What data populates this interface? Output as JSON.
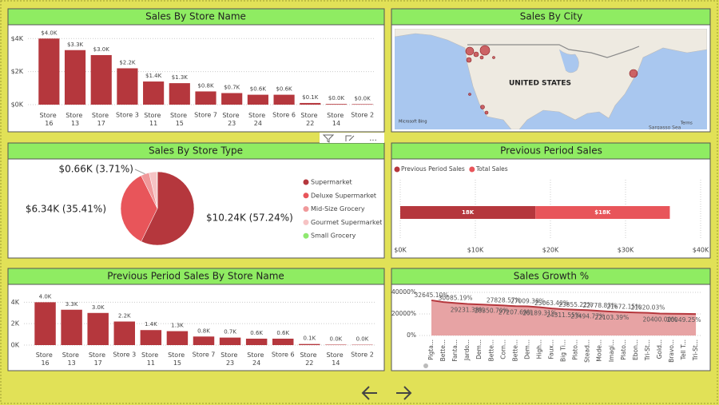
{
  "chart_data": [
    {
      "type": "bar",
      "title": "Sales By Store Name",
      "categories": [
        "Store 16",
        "Store 13",
        "Store 17",
        "Store 3",
        "Store 11",
        "Store 15",
        "Store 7",
        "Store 23",
        "Store 24",
        "Store 6",
        "Store 22",
        "Store 14",
        "Store 2"
      ],
      "values": [
        4.0,
        3.3,
        3.0,
        2.2,
        1.4,
        1.3,
        0.8,
        0.7,
        0.6,
        0.6,
        0.1,
        0.04,
        0.03
      ],
      "value_labels": [
        "$4.0K",
        "$3.3K",
        "$3.0K",
        "$2.2K",
        "$1.4K",
        "$1.3K",
        "$0.8K",
        "$0.7K",
        "$0.6K",
        "$0.6K",
        "$0.1K",
        "$0.0K",
        "$0.0K"
      ],
      "color": "#b5373d",
      "ylim": [
        0,
        4.4
      ],
      "yticks": [
        {
          "value": 0,
          "label": "$0K"
        },
        {
          "value": 2,
          "label": "$2K"
        },
        {
          "value": 4,
          "label": "$4K"
        }
      ],
      "grid": true
    },
    {
      "type": "pie",
      "title": "Sales By Store Type",
      "categories": [
        "Supermarket",
        "Deluxe Supermarket",
        "Mid-Size Grocery",
        "Gourmet Supermarket",
        "Small Grocery"
      ],
      "values": [
        10.24,
        6.34,
        0.66,
        0.62,
        0.03
      ],
      "value_labels": [
        "$10.24K (57.24%)",
        "$6.34K (35.41%)",
        "$0.66K (3.71%)",
        null,
        null
      ],
      "colors": [
        "#b5373d",
        "#e8555a",
        "#f0999b",
        "#f6c3c4",
        "#8fe870"
      ]
    },
    {
      "type": "hbar",
      "title": "Previous Period Sales",
      "series": [
        {
          "name": "Previous Period Sales",
          "color": "#b5373d",
          "values": [
            18.0
          ],
          "value_labels": [
            "18K"
          ]
        },
        {
          "name": "Total Sales",
          "color": "#e8555a",
          "values": [
            17.9
          ],
          "value_labels": [
            "$18K"
          ]
        }
      ],
      "xlim": [
        0,
        40
      ],
      "xticks": [
        {
          "value": 0,
          "label": "$0K"
        },
        {
          "value": 10,
          "label": "$10K"
        },
        {
          "value": 20,
          "label": "$20K"
        },
        {
          "value": 30,
          "label": "$30K"
        },
        {
          "value": 40,
          "label": "$40K"
        }
      ],
      "grid": true
    },
    {
      "type": "bar",
      "title": "Previous Period Sales By Store Name",
      "categories": [
        "Store 16",
        "Store 13",
        "Store 17",
        "Store 3",
        "Store 11",
        "Store 15",
        "Store 7",
        "Store 23",
        "Store 24",
        "Store 6",
        "Store 22",
        "Store 14",
        "Store 2"
      ],
      "values": [
        4.0,
        3.3,
        3.0,
        2.2,
        1.4,
        1.3,
        0.8,
        0.7,
        0.6,
        0.6,
        0.1,
        0.04,
        0.03
      ],
      "value_labels": [
        "4.0K",
        "3.3K",
        "3.0K",
        "2.2K",
        "1.4K",
        "1.3K",
        "0.8K",
        "0.7K",
        "0.6K",
        "0.6K",
        "0.1K",
        "0.0K",
        "0.0K"
      ],
      "color": "#b5373d",
      "ylim": [
        0,
        4.4
      ],
      "yticks": [
        {
          "value": 0,
          "label": "0K"
        },
        {
          "value": 2,
          "label": "2K"
        },
        {
          "value": 4,
          "label": "4K"
        }
      ],
      "grid": true
    },
    {
      "type": "area",
      "title": "Sales Growth %",
      "categories": [
        "Pigta...",
        "Bette...",
        "Fanta...",
        "Jardo...",
        "Dem...",
        "Bette...",
        "Corn...",
        "Bette...",
        "Dem...",
        "High...",
        "Faux...",
        "Big Ti...",
        "Plato...",
        "Stead...",
        "Mode...",
        "Imagi...",
        "Plato...",
        "Ebon...",
        "Tri-St...",
        "Gold...",
        "Bravo...",
        "Tell T...",
        "Tri-St..."
      ],
      "values": [
        32645.1,
        31000,
        30085.19,
        29231.38,
        28800,
        28350.7,
        27828.57,
        27207.69,
        27009.38,
        26189.31,
        25063.4,
        24311.55,
        23855.22,
        23494.77,
        22778.83,
        22103.39,
        21672.15,
        21300,
        21020.03,
        20400.0,
        20200,
        20049.25,
        19900
      ],
      "value_labels": [
        "32645.10%",
        null,
        "30085.19%",
        "29231.38%",
        null,
        "28350.70%",
        "27828.57%",
        "27207.69%",
        "27009.38%",
        "26189.31%",
        "25063.40%",
        "24311.55%",
        "23855.22%",
        "23494.77%",
        "22778.83%",
        "22103.39%",
        "21672.15%",
        null,
        "21020.03%",
        "20400.00%",
        null,
        "20049.25%",
        null
      ],
      "color": "#b5373d",
      "area_color": "#e7a3a4",
      "ylim": [
        0,
        40000
      ],
      "yticks": [
        {
          "value": 0,
          "label": "0%"
        },
        {
          "value": 20000,
          "label": "20000%"
        },
        {
          "value": 40000,
          "label": "40000%"
        }
      ],
      "grid": true
    }
  ],
  "map": {
    "title": "Sales By City",
    "country_label": "UNITED STATES",
    "attribution": "Microsoft Bing",
    "terms": "Terms",
    "sea_label": "Sargasso Sea"
  }
}
